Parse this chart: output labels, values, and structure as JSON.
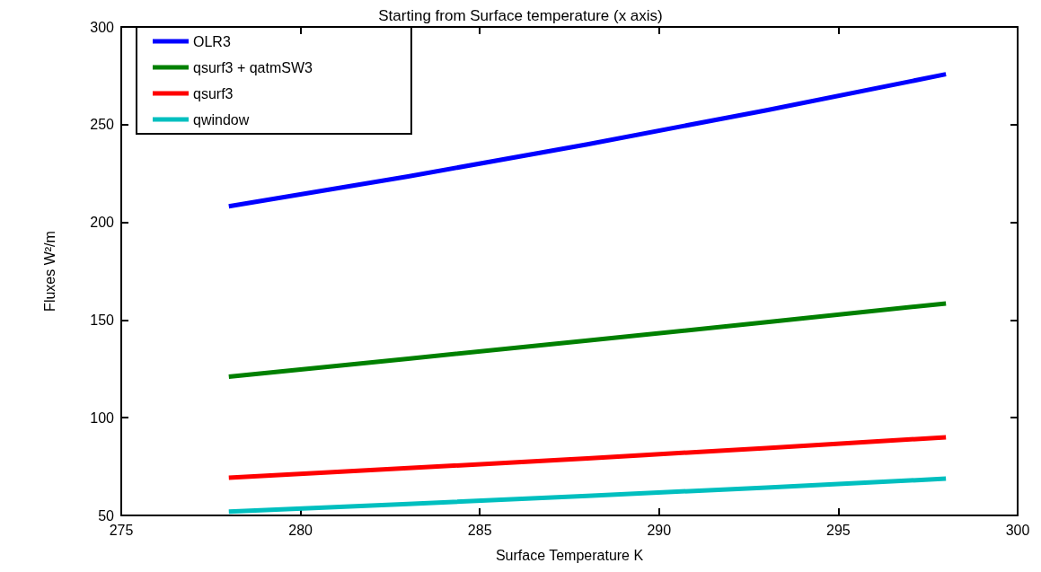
{
  "chart_data": {
    "type": "line",
    "title": "Starting from Surface temperature (x axis)",
    "xlabel": "Surface Temperature K",
    "ylabel": "Fluxes W²/m",
    "x": [
      278,
      283,
      288,
      293,
      298
    ],
    "series": [
      {
        "name": "OLR3",
        "color": "#0000ff",
        "values": [
          208.2,
          223.5,
          239.9,
          257.4,
          275.8
        ]
      },
      {
        "name": "qsurf3 + qatmSW3",
        "color": "#008000",
        "values": [
          121,
          130.2,
          139.5,
          148.9,
          158.5
        ]
      },
      {
        "name": "qsurf3",
        "color": "#ff0000",
        "values": [
          69.3,
          74.2,
          79.2,
          84.5,
          90
        ]
      },
      {
        "name": "qwindow",
        "color": "#00bfbf",
        "values": [
          52,
          55.9,
          60,
          64.3,
          68.8
        ]
      }
    ],
    "xlim": [
      275,
      300
    ],
    "xticks": [
      275,
      280,
      285,
      290,
      295,
      300
    ],
    "ylim": [
      50,
      300
    ],
    "yticks": [
      50,
      100,
      150,
      200,
      250,
      300
    ],
    "legend": "top left",
    "marker": "none",
    "line_style": "solid",
    "grid": false
  }
}
